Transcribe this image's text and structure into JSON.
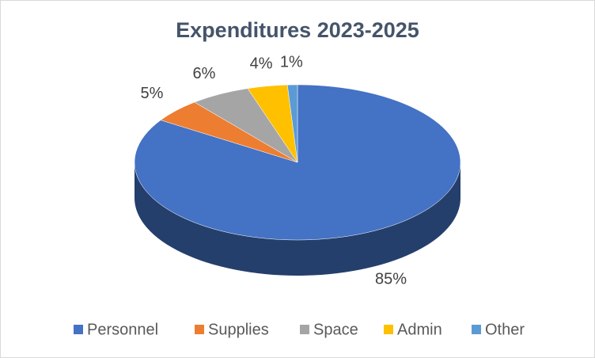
{
  "chart_data": {
    "type": "pie3d",
    "title": "Expenditures 2023-2025",
    "categories": [
      "Personnel",
      "Supplies",
      "Space",
      "Admin",
      "Other"
    ],
    "values": [
      85,
      5,
      6,
      4,
      1
    ],
    "value_labels": [
      "85%",
      "5%",
      "6%",
      "4%",
      "1%"
    ],
    "colors": [
      "#4472c4",
      "#ed7d31",
      "#a5a5a5",
      "#ffc000",
      "#5b9bd5"
    ],
    "legend": "bottom"
  }
}
